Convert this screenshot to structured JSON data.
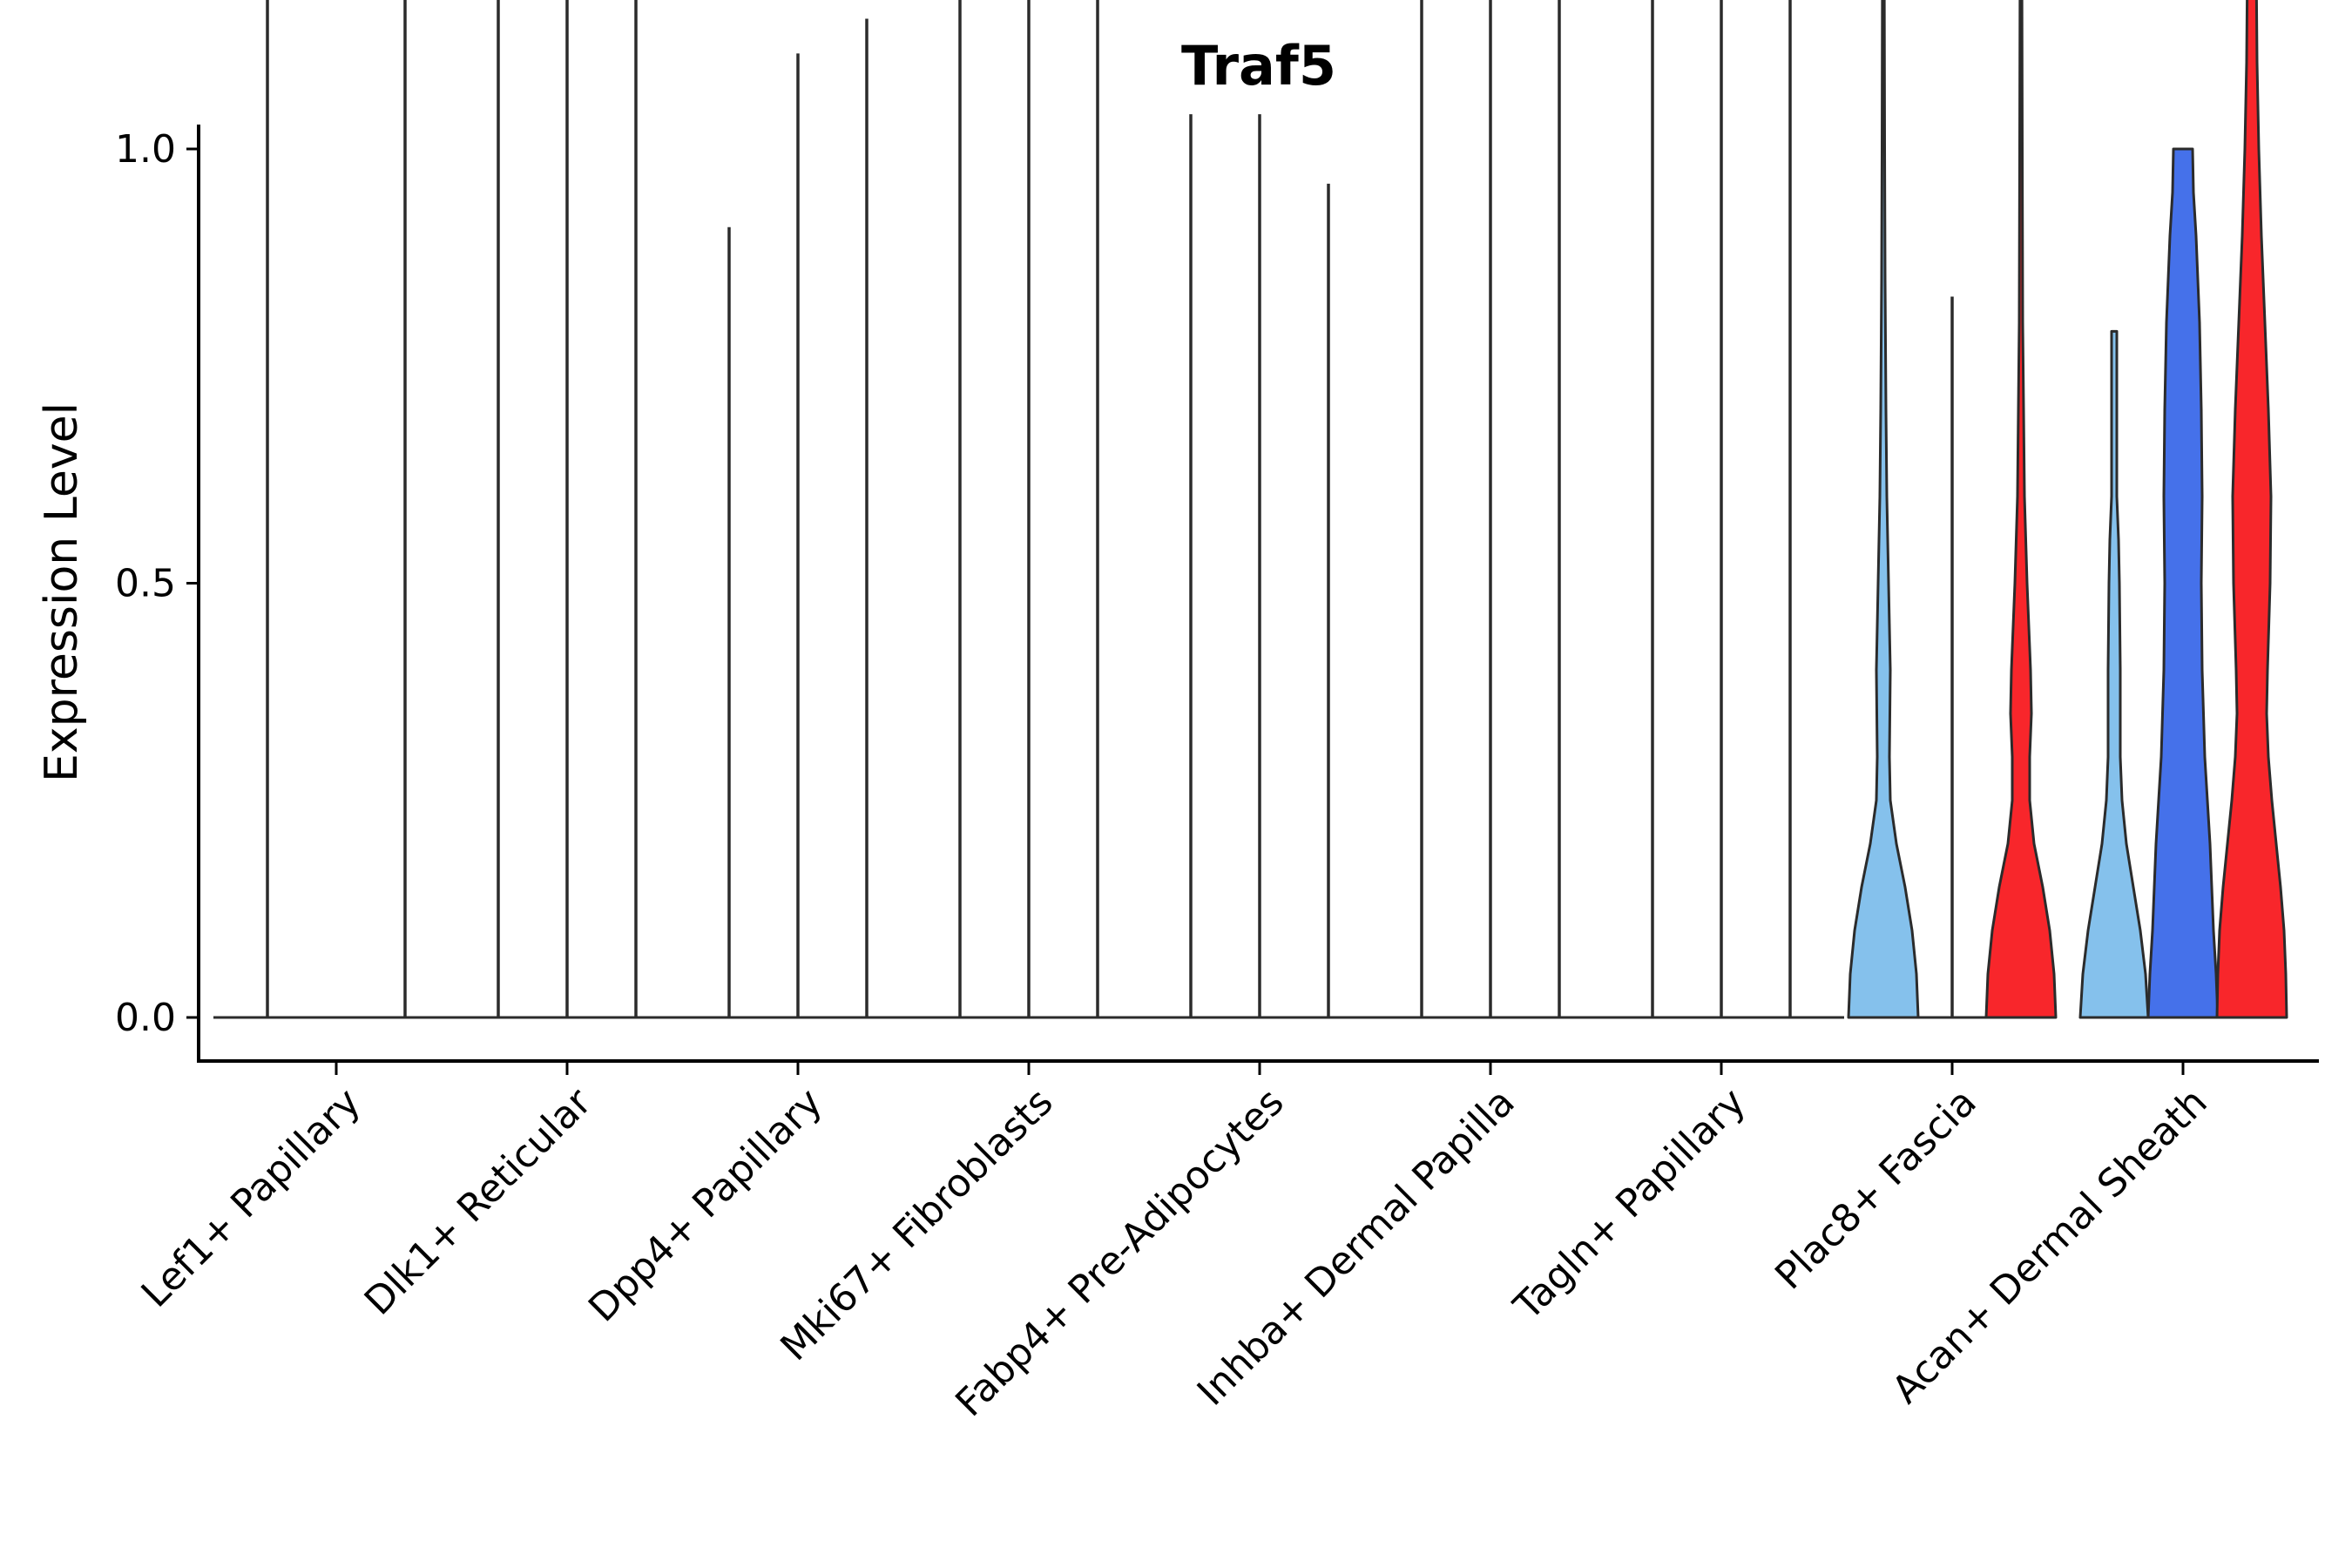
{
  "chart_data": {
    "type": "violin",
    "title": "Traf5",
    "xlabel": "",
    "ylabel": "Expression Level",
    "ylim": [
      -0.1,
      2.05
    ],
    "yticks": [
      "0.0",
      "0.5",
      "1.0",
      "1.5",
      "2.0"
    ],
    "ytick_values": [
      0.0,
      0.5,
      1.0,
      1.5,
      2.0
    ],
    "categories": [
      "Lef1+ Papillary",
      "Dlk1+ Reticular",
      "Dpp4+ Papillary",
      "Mki67+ Fibroblasts",
      "Fabp4+ Pre-Adipocytes",
      "Inhba+ Dermal Papilla",
      "Tagln+ Papillary",
      "Plac8+ Fascia",
      "Acan+ Dermal Sheath"
    ],
    "series": [
      {
        "name": "group1",
        "color": "#85c1ec",
        "max": [
          1.52,
          1.96,
          0.91,
          1.86,
          1.04,
          1.72,
          1.51,
          1.23,
          0.79
        ]
      },
      {
        "name": "group2",
        "color": "#4571ea",
        "max": [
          null,
          1.52,
          1.11,
          1.2,
          1.04,
          1.4,
          1.44,
          0.83,
          1.0
        ]
      },
      {
        "name": "group3",
        "color": "#f8262b",
        "max": [
          1.53,
          1.45,
          1.15,
          1.33,
          0.96,
          1.35,
          1.29,
          1.45,
          1.22
        ]
      }
    ],
    "filled_violins": [
      {
        "category": 7,
        "series": 0
      },
      {
        "category": 7,
        "series": 2
      },
      {
        "category": 8,
        "series": 0
      },
      {
        "category": 8,
        "series": 1
      },
      {
        "category": 8,
        "series": 2
      }
    ]
  }
}
